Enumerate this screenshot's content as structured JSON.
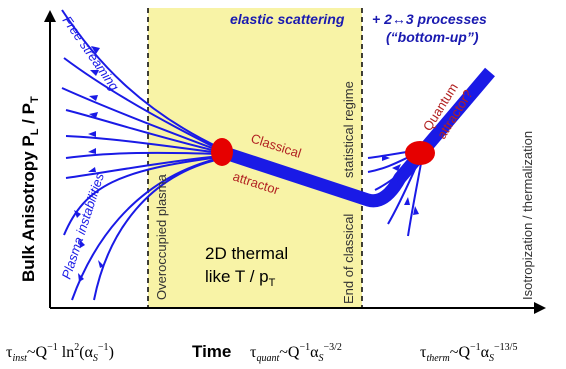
{
  "colors": {
    "blue": "#1a1ae6",
    "dark_blue": "#1a1ab0",
    "red_text": "#b22222",
    "red_fill": "#e60000",
    "yellow_band": "#f8f3a6"
  },
  "axes": {
    "ylabel": "Bulk Anisotropy P_L / P_T",
    "ylabel_main": "Bulk Anisotropy P",
    "ylabel_sub1": "L",
    "ylabel_mid": " / P",
    "ylabel_sub2": "T",
    "xlabel": "Time"
  },
  "header": {
    "elastic": "elastic scattering",
    "processes_line1": "+ 2↔3 processes",
    "processes_line2": "(“bottom-up”)"
  },
  "labels": {
    "free_streaming": "Free streaming",
    "plasma_instabilities": "Plasma instabilities",
    "overoccupied": "Overoccupied plasma",
    "classical": "Classical",
    "attractor": "attractor",
    "statistical": "statistical regime",
    "end_classical": "End of classical",
    "quantum": "Quantum",
    "attractor_q": "attractor?",
    "isotropization": "Isotropization / thermalization",
    "thermal_line1": "2D thermal",
    "thermal_line2": "like T / p",
    "thermal_sub": "T"
  },
  "timescales": {
    "inst": "τ_inst ~ Q^-1 ln^2(α_S^-1)",
    "quant": "τ_quant ~ Q^-1 α_S^-3/2",
    "therm": "τ_therm ~ Q^-1 α_S^-13/5"
  }
}
